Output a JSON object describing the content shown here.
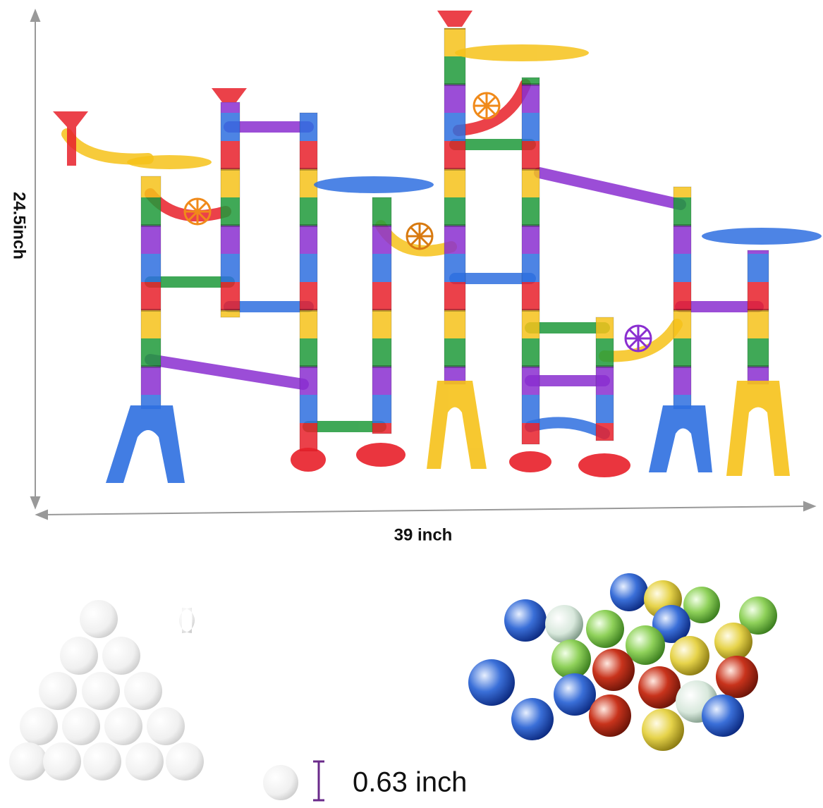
{
  "dimensions": {
    "height": "24.5inch",
    "width": "39 inch",
    "marble_diameter": "0.63 inch"
  }
}
